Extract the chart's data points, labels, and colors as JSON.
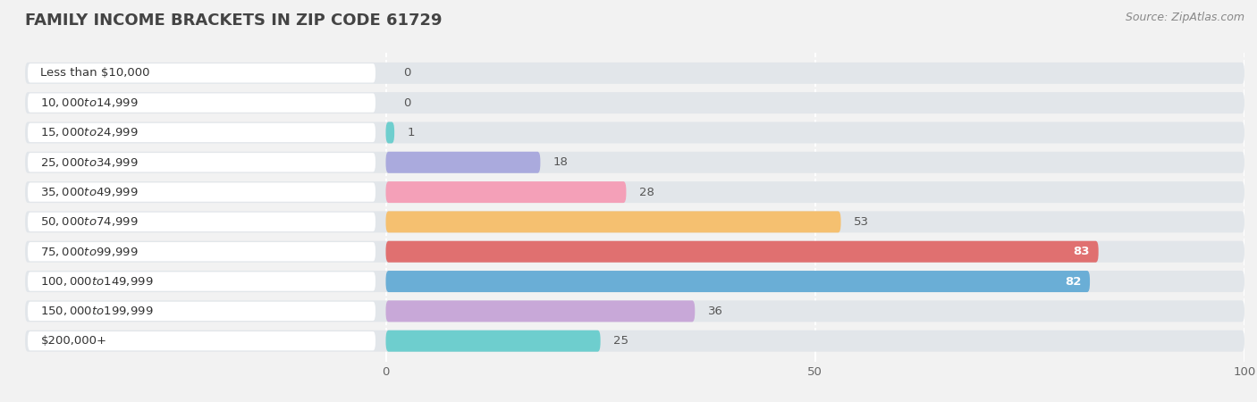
{
  "title": "FAMILY INCOME BRACKETS IN ZIP CODE 61729",
  "source": "Source: ZipAtlas.com",
  "categories": [
    "Less than $10,000",
    "$10,000 to $14,999",
    "$15,000 to $24,999",
    "$25,000 to $34,999",
    "$35,000 to $49,999",
    "$50,000 to $74,999",
    "$75,000 to $99,999",
    "$100,000 to $149,999",
    "$150,000 to $199,999",
    "$200,000+"
  ],
  "values": [
    0,
    0,
    1,
    18,
    28,
    53,
    83,
    82,
    36,
    25
  ],
  "bar_colors": [
    "#aaccee",
    "#d4a8d4",
    "#6ecece",
    "#aaaadd",
    "#f4a0b8",
    "#f5c070",
    "#e07070",
    "#6aaed6",
    "#c8a8d8",
    "#6ecece"
  ],
  "background_color": "#f2f2f2",
  "bar_bg_color": "#e2e6ea",
  "label_bg_color": "#ffffff",
  "xlim": [
    0,
    100
  ],
  "xticks": [
    0,
    50,
    100
  ],
  "title_color": "#444444",
  "label_color": "#333333",
  "value_color_dark": "#555555",
  "value_color_light": "#ffffff",
  "title_fontsize": 13,
  "label_fontsize": 9.5,
  "value_fontsize": 9.5,
  "source_fontsize": 9
}
